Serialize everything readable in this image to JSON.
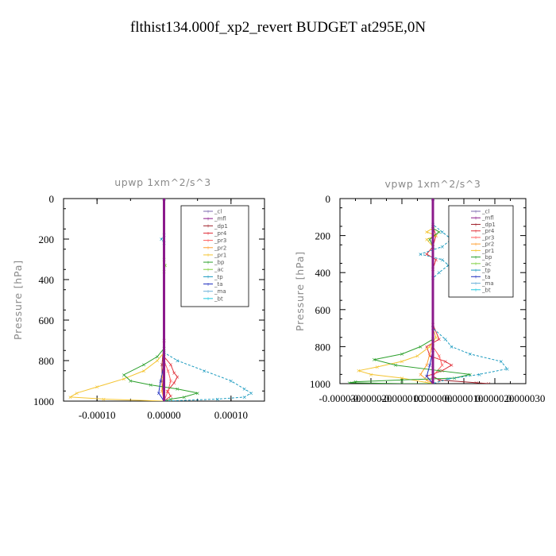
{
  "title": "flthist134.000f_xp2_revert  BUDGET at295E,0N",
  "chart_data": [
    {
      "type": "line",
      "title": "upwp   1xm^2/s^3",
      "ylabel": "Pressure [hPa]",
      "xlabel": "",
      "ylim": [
        1000,
        0
      ],
      "xlim": [
        -0.00015,
        0.00015
      ],
      "y_ticks": [
        "0",
        "200",
        "400",
        "600",
        "800",
        "1000"
      ],
      "x_ticks": [
        "-0.00010",
        "0.00000",
        "0.00010"
      ],
      "legend_placement": "top-right",
      "legend": [
        "_cl",
        "_mfl",
        "_dp1",
        "_pr4",
        "_pr3",
        "_pr2",
        "_pr1",
        "_bp",
        "_ac",
        "_tp",
        "_ta",
        "_ma",
        "_bt"
      ],
      "series": [
        {
          "name": "_cl",
          "color": "#7b68ae",
          "points": [
            [
              0,
              0
            ],
            [
              0,
              1000
            ]
          ]
        },
        {
          "name": "_mfl",
          "color": "#8b1a8b",
          "points": [
            [
              0,
              0
            ],
            [
              0,
              1000
            ]
          ]
        },
        {
          "name": "_dp1",
          "color": "#a0202a",
          "points": [
            [
              0,
              0
            ],
            [
              0,
              700
            ],
            [
              -3e-06,
              820
            ],
            [
              -3e-06,
              900
            ],
            [
              0,
              1000
            ]
          ]
        },
        {
          "name": "_pr4",
          "color": "#e0303a",
          "points": [
            [
              0,
              0
            ],
            [
              0,
              780
            ],
            [
              1e-05,
              820
            ],
            [
              1.5e-05,
              860
            ],
            [
              2e-05,
              880
            ],
            [
              1.5e-05,
              910
            ],
            [
              5e-06,
              950
            ],
            [
              1e-05,
              975
            ],
            [
              0,
              1000
            ]
          ]
        },
        {
          "name": "_pr3",
          "color": "#ff5a5a",
          "points": [
            [
              0,
              0
            ],
            [
              0,
              800
            ],
            [
              6e-06,
              850
            ],
            [
              1e-05,
              900
            ],
            [
              6e-06,
              950
            ],
            [
              0,
              1000
            ]
          ]
        },
        {
          "name": "_pr2",
          "color": "#ff9e30",
          "points": [
            [
              0,
              0
            ],
            [
              0,
              800
            ],
            [
              -3e-06,
              880
            ],
            [
              -3e-06,
              950
            ],
            [
              0,
              1000
            ]
          ]
        },
        {
          "name": "_pr1",
          "color": "#f4c430",
          "points": [
            [
              0,
              0
            ],
            [
              0,
              760
            ],
            [
              -1e-05,
              800
            ],
            [
              -3e-05,
              850
            ],
            [
              -6e-05,
              890
            ],
            [
              -0.0001,
              930
            ],
            [
              -0.00013,
              960
            ],
            [
              -0.00014,
              980
            ],
            [
              -9e-05,
              990
            ],
            [
              0,
              1000
            ]
          ]
        },
        {
          "name": "_bp",
          "color": "#2ca02c",
          "points": [
            [
              0,
              0
            ],
            [
              0,
              740
            ],
            [
              -1e-05,
              780
            ],
            [
              -3e-05,
              820
            ],
            [
              -6e-05,
              870
            ],
            [
              -5e-05,
              900
            ],
            [
              -2e-05,
              920
            ],
            [
              2e-05,
              940
            ],
            [
              5e-05,
              960
            ],
            [
              3e-05,
              980
            ],
            [
              1e-05,
              990
            ],
            [
              0,
              1000
            ]
          ]
        },
        {
          "name": "_ac",
          "color": "#7fcf3f",
          "points": [
            [
              0,
              0
            ],
            [
              0,
              300
            ],
            [
              2e-06,
              330
            ],
            [
              0,
              360
            ],
            [
              0,
              1000
            ]
          ]
        },
        {
          "name": "_tp",
          "color": "#1a9abf",
          "points": [
            [
              0,
              0
            ],
            [
              0,
              180
            ],
            [
              -4e-06,
              200
            ],
            [
              0,
              220
            ],
            [
              0,
              760
            ],
            [
              2e-05,
              800
            ],
            [
              6e-05,
              850
            ],
            [
              0.0001,
              900
            ],
            [
              0.00012,
              940
            ],
            [
              0.00013,
              960
            ],
            [
              0.00012,
              980
            ],
            [
              8e-05,
              990
            ],
            [
              0,
              1000
            ]
          ]
        },
        {
          "name": "_ta",
          "color": "#2030c0",
          "points": [
            [
              0,
              0
            ],
            [
              0,
              820
            ],
            [
              -5e-06,
              900
            ],
            [
              -8e-06,
              960
            ],
            [
              0,
              1000
            ]
          ]
        },
        {
          "name": "_ma",
          "color": "#6bb0d8",
          "points": [
            [
              0,
              0
            ],
            [
              0,
              1000
            ]
          ]
        },
        {
          "name": "_bt",
          "color": "#20c8e0",
          "points": [
            [
              0,
              0
            ],
            [
              0,
              1000
            ]
          ]
        }
      ]
    },
    {
      "type": "line",
      "title": "vpwp   1xm^2/s^3",
      "ylabel": "Pressure [hPa]",
      "xlabel": "",
      "ylim": [
        1000,
        0
      ],
      "xlim": [
        -3e-05,
        3e-05
      ],
      "y_ticks": [
        "0",
        "200",
        "400",
        "600",
        "800",
        "1000"
      ],
      "x_ticks": [
        "-0.000030",
        "-0.000020",
        "-0.000010",
        "0.000000",
        "0.000010",
        "0.000020",
        "0.000030"
      ],
      "legend_placement": "top-right",
      "legend": [
        "_cl",
        "_mfl",
        "_dp1",
        "_pr4",
        "_pr3",
        "_pr2",
        "_pr1",
        "_bp",
        "_ac",
        "_tp",
        "_ta",
        "_ma",
        "_bt"
      ],
      "series": [
        {
          "name": "_cl",
          "color": "#7b68ae",
          "points": [
            [
              0,
              0
            ],
            [
              0,
              1000
            ]
          ]
        },
        {
          "name": "_mfl",
          "color": "#8b1a8b",
          "points": [
            [
              0,
              0
            ],
            [
              0,
              1000
            ]
          ]
        },
        {
          "name": "_dp1",
          "color": "#a0202a",
          "points": [
            [
              0,
              0
            ],
            [
              0,
              960
            ],
            [
              2e-06,
              980
            ],
            [
              1.4e-05,
              995
            ],
            [
              1.8e-05,
              1000
            ]
          ]
        },
        {
          "name": "_pr4",
          "color": "#e0303a",
          "points": [
            [
              0,
              0
            ],
            [
              0,
              150
            ],
            [
              1e-06,
              200
            ],
            [
              0,
              260
            ],
            [
              -2e-06,
              300
            ],
            [
              1e-06,
              330
            ],
            [
              0,
              380
            ],
            [
              0,
              680
            ],
            [
              2e-06,
              760
            ],
            [
              -2e-06,
              800
            ],
            [
              -1e-06,
              850
            ],
            [
              4e-06,
              880
            ],
            [
              6e-06,
              900
            ],
            [
              3e-06,
              930
            ],
            [
              -2e-06,
              960
            ],
            [
              0,
              1000
            ]
          ]
        },
        {
          "name": "_pr3",
          "color": "#ff5a5a",
          "points": [
            [
              0,
              0
            ],
            [
              0,
              800
            ],
            [
              2e-06,
              850
            ],
            [
              3e-06,
              900
            ],
            [
              0,
              960
            ],
            [
              0,
              1000
            ]
          ]
        },
        {
          "name": "_pr2",
          "color": "#ff9e30",
          "points": [
            [
              0,
              0
            ],
            [
              0,
              780
            ],
            [
              -2e-06,
              900
            ],
            [
              -4e-06,
              950
            ],
            [
              -2e-06,
              980
            ],
            [
              0,
              1000
            ]
          ]
        },
        {
          "name": "_pr1",
          "color": "#f4c430",
          "points": [
            [
              0,
              0
            ],
            [
              0,
              160
            ],
            [
              -2e-06,
              180
            ],
            [
              1e-06,
              200
            ],
            [
              -2e-06,
              220
            ],
            [
              0,
              260
            ],
            [
              0,
              700
            ],
            [
              1e-06,
              750
            ],
            [
              -1e-06,
              800
            ],
            [
              -5e-06,
              850
            ],
            [
              -1e-05,
              880
            ],
            [
              -1.8e-05,
              910
            ],
            [
              -2.4e-05,
              930
            ],
            [
              -2e-05,
              950
            ],
            [
              -1e-05,
              970
            ],
            [
              0,
              1000
            ]
          ]
        },
        {
          "name": "_bp",
          "color": "#2ca02c",
          "points": [
            [
              0,
              0
            ],
            [
              0,
              160
            ],
            [
              2e-06,
              180
            ],
            [
              -1e-06,
              220
            ],
            [
              0,
              260
            ],
            [
              0,
              760
            ],
            [
              -4e-06,
              800
            ],
            [
              -1e-05,
              840
            ],
            [
              -1.9e-05,
              870
            ],
            [
              -1.2e-05,
              900
            ],
            [
              2e-06,
              930
            ],
            [
              1.2e-05,
              950
            ],
            [
              7e-06,
              970
            ],
            [
              -1e-05,
              980
            ],
            [
              -2.5e-05,
              990
            ],
            [
              -2.7e-05,
              995
            ],
            [
              -1e-05,
              1000
            ],
            [
              0,
              1000
            ]
          ]
        },
        {
          "name": "_ac",
          "color": "#7fcf3f",
          "points": [
            [
              0,
              0
            ],
            [
              0,
              1000
            ]
          ]
        },
        {
          "name": "_tp",
          "color": "#1a9abf",
          "points": [
            [
              0,
              0
            ],
            [
              0,
              140
            ],
            [
              3e-06,
              180
            ],
            [
              6e-06,
              220
            ],
            [
              3e-06,
              260
            ],
            [
              -4e-06,
              300
            ],
            [
              3e-06,
              330
            ],
            [
              5e-06,
              360
            ],
            [
              2e-06,
              400
            ],
            [
              0,
              430
            ],
            [
              0,
              700
            ],
            [
              4e-06,
              760
            ],
            [
              6e-06,
              800
            ],
            [
              1.2e-05,
              840
            ],
            [
              2.2e-05,
              880
            ],
            [
              2.4e-05,
              920
            ],
            [
              1.5e-05,
              950
            ],
            [
              5e-06,
              975
            ],
            [
              0,
              1000
            ]
          ]
        },
        {
          "name": "_ta",
          "color": "#2030c0",
          "points": [
            [
              0,
              0
            ],
            [
              0,
              820
            ],
            [
              -1e-06,
              900
            ],
            [
              -2e-06,
              960
            ],
            [
              0,
              1000
            ]
          ]
        },
        {
          "name": "_ma",
          "color": "#6bb0d8",
          "points": [
            [
              0,
              0
            ],
            [
              0,
              1000
            ]
          ]
        },
        {
          "name": "_bt",
          "color": "#20c8e0",
          "points": [
            [
              0,
              0
            ],
            [
              0,
              1000
            ]
          ]
        }
      ]
    }
  ]
}
